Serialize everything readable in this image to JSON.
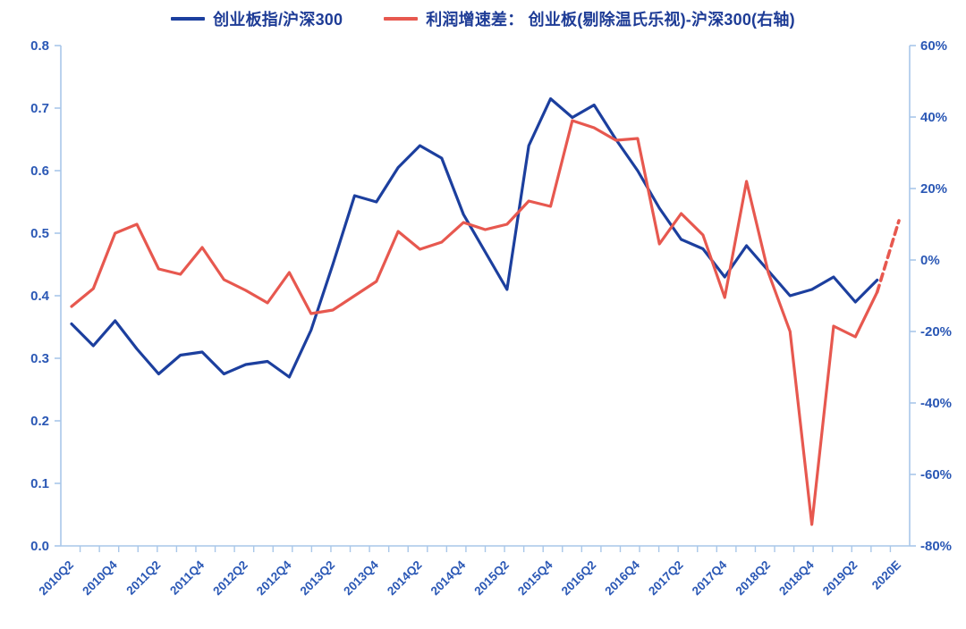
{
  "legend": {
    "items": [
      {
        "label": "创业板指/沪深300",
        "color": "#1c3f9e"
      },
      {
        "label": "利润增速差： 创业板(剔除温氏乐视)-沪深300(右轴)",
        "color": "#e7584f"
      }
    ]
  },
  "chart_data": {
    "type": "line",
    "title": "",
    "x_labels": [
      "2010Q2",
      "2010Q4",
      "2011Q2",
      "2011Q4",
      "2012Q2",
      "2012Q4",
      "2013Q2",
      "2013Q4",
      "2014Q2",
      "2014Q4",
      "2015Q2",
      "2015Q4",
      "2016Q2",
      "2016Q4",
      "2017Q2",
      "2017Q4",
      "2018Q2",
      "2018Q4",
      "2019Q2",
      "2020E"
    ],
    "x_label_every": 2,
    "n_points": 39,
    "series": [
      {
        "name": "创业板指/沪深300",
        "axis": "left",
        "color": "#1c3f9e",
        "values": [
          0.355,
          0.32,
          0.36,
          0.315,
          0.275,
          0.305,
          0.31,
          0.275,
          0.29,
          0.295,
          0.27,
          0.345,
          0.45,
          0.56,
          0.55,
          0.605,
          0.64,
          0.62,
          0.53,
          0.47,
          0.41,
          0.64,
          0.715,
          0.685,
          0.705,
          0.65,
          0.6,
          0.54,
          0.49,
          0.475,
          0.43,
          0.48,
          0.44,
          0.4,
          0.41,
          0.43,
          0.39,
          0.425
        ]
      },
      {
        "name": "利润增速差： 创业板(剔除温氏乐视)-沪深300(右轴)",
        "axis": "right",
        "color": "#e7584f",
        "dashed_from_index": 37,
        "values": [
          -13,
          -8,
          7.5,
          10,
          -2.5,
          -4,
          3.5,
          -5.5,
          -8.5,
          -12,
          -3.5,
          -15,
          -14,
          -10,
          -6,
          8,
          3,
          5,
          10.5,
          8.5,
          10,
          16.5,
          15,
          39,
          37,
          33.5,
          34,
          4.5,
          13,
          7,
          -10.5,
          22,
          -3.5,
          -20,
          -74,
          -18.5,
          -21.5,
          -9,
          11
        ]
      }
    ],
    "left_axis": {
      "min": 0,
      "max": 0.8,
      "step": 0.1,
      "tick_labels": [
        "0.0",
        "0.1",
        "0.2",
        "0.3",
        "0.4",
        "0.5",
        "0.6",
        "0.7",
        "0.8"
      ]
    },
    "right_axis": {
      "min": -80,
      "max": 60,
      "step": 20,
      "tick_labels": [
        "-80%",
        "-60%",
        "-40%",
        "-20%",
        "0%",
        "20%",
        "40%",
        "60%"
      ]
    },
    "legend_position": "top",
    "grid": false
  },
  "style": {
    "axis_line_color": "#a9c7e9",
    "tick_label_color": "#2b58b5",
    "line_width": 3.2
  }
}
